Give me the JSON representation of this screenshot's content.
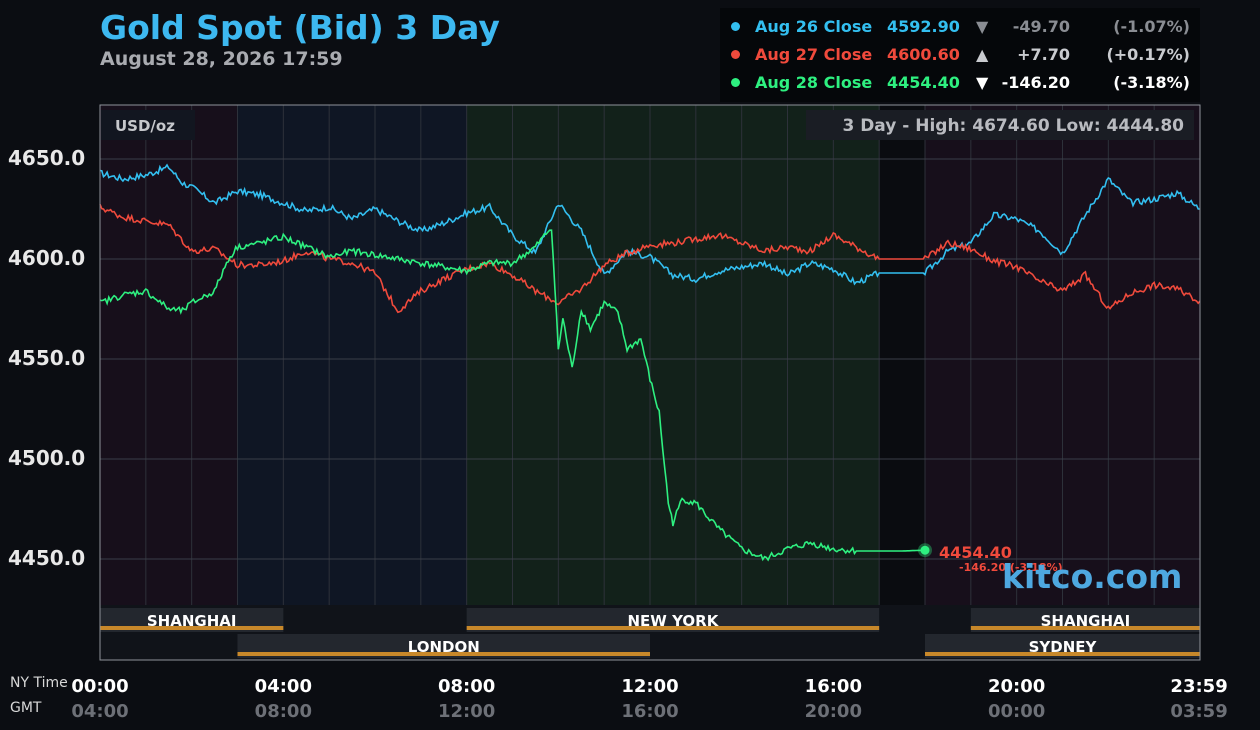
{
  "header": {
    "title": "Gold Spot (Bid) 3 Day",
    "subtitle": "August 28, 2026 17:59"
  },
  "legend": [
    {
      "name": "Aug 26 Close",
      "price": "4592.90",
      "arrow": "▼",
      "change": "-49.70",
      "pct": "(-1.07%)",
      "color": "#33bff0",
      "dim": true
    },
    {
      "name": "Aug 27 Close",
      "price": "4600.60",
      "arrow": "▲",
      "change": "+7.70",
      "pct": "(+0.17%)",
      "color": "#f04a3c",
      "dim": true
    },
    {
      "name": "Aug 28 Close",
      "price": "4454.40",
      "arrow": "▼",
      "change": "-146.20",
      "pct": "(-3.18%)",
      "color": "#2ef080",
      "dim": false
    }
  ],
  "unit_label": "USD/oz",
  "range_label": "3 Day - High: 4674.60  Low: 4444.80",
  "last_price": {
    "value": "4454.40",
    "change": "-146.20 (-3.18%)"
  },
  "watermark": "kitco.com",
  "axis_names": {
    "ny": "NY Time",
    "gmt": "GMT"
  },
  "sessions": [
    {
      "name": "SHANGHAI",
      "start": 0,
      "end": 4,
      "row": 0
    },
    {
      "name": "NEW YORK",
      "start": 8,
      "end": 17,
      "row": 0
    },
    {
      "name": "SHANGHAI",
      "start": 19,
      "end": 24,
      "row": 0
    },
    {
      "name": "LONDON",
      "start": 3,
      "end": 12,
      "row": 1
    },
    {
      "name": "SYDNEY",
      "start": 18,
      "end": 24,
      "row": 1
    }
  ],
  "colors": {
    "aug26": "#33bff0",
    "aug27": "#f04a3c",
    "aug28": "#2ef080",
    "session_bar": "#c8882a"
  },
  "chart_data": {
    "type": "line",
    "title": "Gold Spot (Bid) 3 Day",
    "ylabel": "USD/oz",
    "ylim": [
      4427,
      4677
    ],
    "xlim": [
      0,
      24
    ],
    "yticks": [
      "4650.0",
      "4600.0",
      "4550.0",
      "4500.0",
      "4450.0"
    ],
    "ytick_values": [
      4650,
      4600,
      4550,
      4500,
      4450
    ],
    "xticks": [
      {
        "ny": "00:00",
        "gmt": "04:00"
      },
      {
        "ny": "04:00",
        "gmt": "08:00"
      },
      {
        "ny": "08:00",
        "gmt": "12:00"
      },
      {
        "ny": "12:00",
        "gmt": "16:00"
      },
      {
        "ny": "16:00",
        "gmt": "20:00"
      },
      {
        "ny": "20:00",
        "gmt": "00:00"
      },
      {
        "ny": "23:59",
        "gmt": "03:59"
      }
    ],
    "xtick_values": [
      0,
      4,
      8,
      12,
      16,
      20,
      23.98
    ],
    "grid": true,
    "high": 4674.6,
    "low": 4444.8,
    "series": [
      {
        "name": "Aug 26",
        "color": "#33bff0",
        "x": [
          0,
          0.5,
          1,
          1.5,
          1.8,
          2,
          2.5,
          3,
          3.5,
          4,
          4.5,
          5,
          5.5,
          6,
          6.5,
          7,
          7.5,
          8,
          8.5,
          9,
          9.5,
          10,
          10.5,
          11,
          11.5,
          12,
          12.5,
          13,
          13.5,
          14,
          14.5,
          15,
          15.5,
          16,
          16.5,
          17,
          17.5,
          18,
          18.5,
          19,
          19.5,
          20,
          20.5,
          21,
          21.5,
          22,
          22.5,
          23,
          23.5,
          24
        ],
        "y": [
          4643,
          4640,
          4642,
          4646,
          4638,
          4636,
          4628,
          4634,
          4632,
          4628,
          4624,
          4626,
          4620,
          4625,
          4619,
          4614,
          4618,
          4623,
          4626,
          4612,
          4603,
          4628,
          4614,
          4592,
          4604,
          4601,
          4592,
          4590,
          4594,
          4596,
          4598,
          4592,
          4598,
          4595,
          4588,
          4593,
          4593,
          4593,
          4604,
          4608,
          4622,
          4620,
          4614,
          4603,
          4622,
          4640,
          4628,
          4630,
          4633,
          4625
        ]
      },
      {
        "name": "Aug 27",
        "color": "#f04a3c",
        "x": [
          0,
          0.5,
          1,
          1.5,
          2,
          2.5,
          3,
          3.5,
          4,
          4.5,
          5,
          5.5,
          6,
          6.5,
          7,
          7.5,
          8,
          8.5,
          9,
          9.5,
          10,
          10.5,
          11,
          11.5,
          12,
          12.5,
          13,
          13.5,
          14,
          14.5,
          15,
          15.5,
          16,
          16.5,
          17,
          17.5,
          18,
          18.5,
          19,
          19.5,
          20,
          20.5,
          21,
          21.5,
          22,
          22.5,
          23,
          23.5,
          24
        ],
        "y": [
          4626,
          4621,
          4619,
          4617,
          4604,
          4605,
          4597,
          4597,
          4599,
          4604,
          4600,
          4598,
          4593,
          4574,
          4584,
          4590,
          4595,
          4598,
          4592,
          4584,
          4578,
          4585,
          4597,
          4603,
          4607,
          4608,
          4610,
          4612,
          4608,
          4604,
          4606,
          4604,
          4612,
          4606,
          4600,
          4600,
          4600,
          4608,
          4605,
          4599,
          4596,
          4589,
          4584,
          4592,
          4575,
          4583,
          4587,
          4585,
          4579
        ]
      },
      {
        "name": "Aug 28",
        "color": "#2ef080",
        "x": [
          0,
          0.5,
          1,
          1.5,
          1.8,
          2,
          2.5,
          2.8,
          3,
          3.5,
          4,
          4.5,
          5,
          5.5,
          6,
          6.5,
          7,
          7.5,
          8,
          8.5,
          9,
          9.5,
          9.85,
          10,
          10.1,
          10.3,
          10.5,
          10.7,
          11,
          11.3,
          11.5,
          11.8,
          12,
          12.2,
          12.4,
          12.5,
          12.7,
          13,
          13.3,
          13.5,
          14,
          14.5,
          15,
          15.5,
          16,
          16.5,
          17,
          17.5,
          18
        ],
        "y": [
          4578,
          4582,
          4584,
          4575,
          4574,
          4578,
          4584,
          4600,
          4606,
          4608,
          4611,
          4606,
          4601,
          4604,
          4602,
          4600,
          4598,
          4596,
          4594,
          4598,
          4598,
          4606,
          4616,
          4555,
          4570,
          4545,
          4575,
          4565,
          4578,
          4573,
          4555,
          4560,
          4540,
          4523,
          4478,
          4468,
          4480,
          4478,
          4470,
          4465,
          4455,
          4450,
          4455,
          4458,
          4455,
          4454,
          4454,
          4454,
          4454.4
        ]
      }
    ]
  }
}
